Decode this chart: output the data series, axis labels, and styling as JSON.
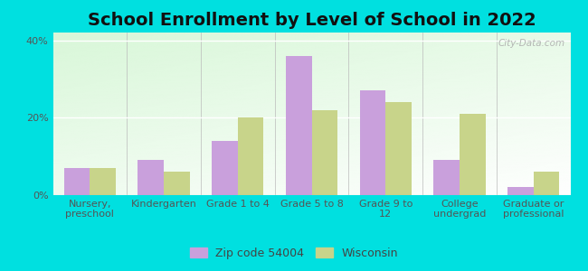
{
  "title": "School Enrollment by Level of School in 2022",
  "categories": [
    "Nursery,\npreschool",
    "Kindergarten",
    "Grade 1 to 4",
    "Grade 5 to 8",
    "Grade 9 to\n12",
    "College\nundergrad",
    "Graduate or\nprofessional"
  ],
  "zip_values": [
    7,
    9,
    14,
    36,
    27,
    9,
    2
  ],
  "wi_values": [
    7,
    6,
    20,
    22,
    24,
    21,
    6
  ],
  "zip_color": "#c9a0dc",
  "wi_color": "#c8d48a",
  "background_color": "#00e0e0",
  "title_fontsize": 14,
  "tick_fontsize": 8,
  "legend_fontsize": 9,
  "ylim": [
    0,
    42
  ],
  "yticks": [
    0,
    20,
    40
  ],
  "ytick_labels": [
    "0%",
    "20%",
    "40%"
  ],
  "watermark": "City-Data.com",
  "legend_zip_label": "Zip code 54004",
  "legend_wi_label": "Wisconsin",
  "bar_width": 0.35
}
